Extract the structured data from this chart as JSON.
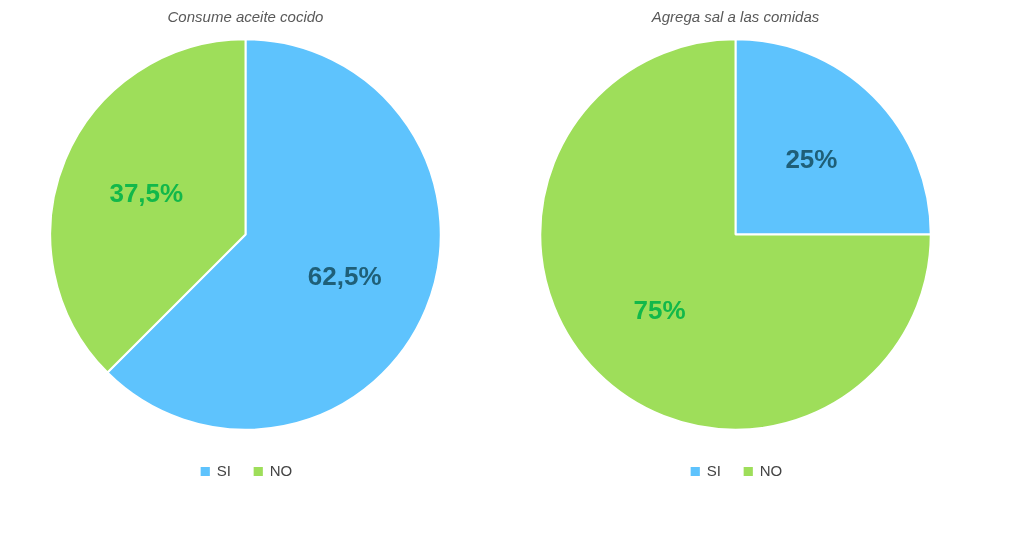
{
  "chart_data": [
    {
      "type": "pie",
      "title": "Consume aceite cocido",
      "categories": [
        "SI",
        "NO"
      ],
      "values": [
        62.5,
        37.5
      ],
      "colors": [
        "#5ec3fd",
        "#9ede5a"
      ],
      "value_labels": [
        "62,5%",
        "37,5%"
      ],
      "legend": "bottom"
    },
    {
      "type": "pie",
      "title": "Agrega sal a las comidas",
      "categories": [
        "SI",
        "NO"
      ],
      "values": [
        25,
        75
      ],
      "colors": [
        "#5ec3fd",
        "#9ede5a"
      ],
      "value_labels": [
        "25%",
        "75%"
      ],
      "legend": "bottom"
    }
  ]
}
